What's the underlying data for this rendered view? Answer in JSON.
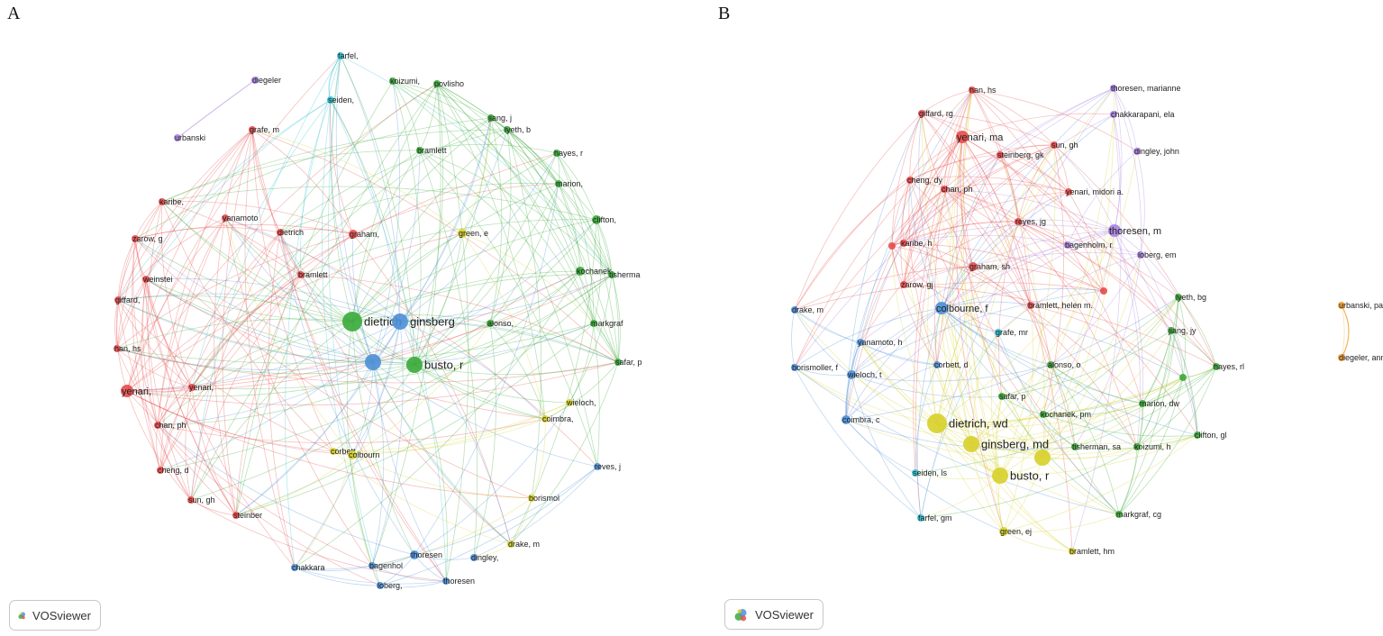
{
  "panels": [
    {
      "letter": "A",
      "logo_text": "VOSviewer",
      "clusters": {
        "red": "#e84a4a",
        "green": "#3aaa3a",
        "blue": "#4d8fd6",
        "yellow": "#d7d02a",
        "purple": "#a77fe0",
        "cyan": "#2fc1d3",
        "orange": "#f09d2c"
      },
      "nodes": [
        {
          "id": "farfel",
          "label": "farfel,",
          "cluster": "cyan",
          "weight": 1
        },
        {
          "id": "diegeler",
          "label": "diegeler",
          "cluster": "purple",
          "weight": 1
        },
        {
          "id": "urbanski",
          "label": "urbanski",
          "cluster": "purple",
          "weight": 1
        },
        {
          "id": "seiden",
          "label": "seiden,",
          "cluster": "cyan",
          "weight": 1
        },
        {
          "id": "koizumi",
          "label": "koizumi,",
          "cluster": "green",
          "weight": 1
        },
        {
          "id": "povlisho",
          "label": "povlisho",
          "cluster": "green",
          "weight": 1
        },
        {
          "id": "jiang",
          "label": "jiang, j",
          "cluster": "green",
          "weight": 1
        },
        {
          "id": "lyeth",
          "label": "lyeth, b",
          "cluster": "green",
          "weight": 1
        },
        {
          "id": "grafe",
          "label": "grafe, m",
          "cluster": "red",
          "weight": 1
        },
        {
          "id": "bramlett_g",
          "label": "bramlett",
          "cluster": "green",
          "weight": 1
        },
        {
          "id": "hayes",
          "label": "hayes, r",
          "cluster": "green",
          "weight": 1
        },
        {
          "id": "marion",
          "label": "marion,",
          "cluster": "green",
          "weight": 1
        },
        {
          "id": "karibe",
          "label": "karibe,",
          "cluster": "red",
          "weight": 1
        },
        {
          "id": "yanamoto",
          "label": "yanamoto",
          "cluster": "red",
          "weight": 1
        },
        {
          "id": "clifton",
          "label": "clifton,",
          "cluster": "green",
          "weight": 2
        },
        {
          "id": "zarow",
          "label": "zarow, g",
          "cluster": "red",
          "weight": 1
        },
        {
          "id": "dietrich_r",
          "label": "dietrich",
          "cluster": "red",
          "weight": 1
        },
        {
          "id": "graham",
          "label": "graham,",
          "cluster": "red",
          "weight": 2
        },
        {
          "id": "green",
          "label": "green, e",
          "cluster": "yellow",
          "weight": 2
        },
        {
          "id": "weinstei",
          "label": "weinstei",
          "cluster": "red",
          "weight": 1
        },
        {
          "id": "bramlett_r",
          "label": "bramlett",
          "cluster": "red",
          "weight": 1
        },
        {
          "id": "kochanek",
          "label": "kochanek",
          "cluster": "green",
          "weight": 2
        },
        {
          "id": "tisherma",
          "label": "tisherma",
          "cluster": "green",
          "weight": 1
        },
        {
          "id": "giffard",
          "label": "giffard,",
          "cluster": "red",
          "weight": 1
        },
        {
          "id": "dietrich",
          "label": "dietrich",
          "cluster": "green",
          "weight": 5
        },
        {
          "id": "ginsberg",
          "label": "ginsberg",
          "cluster": "blue",
          "weight": 4
        },
        {
          "id": "alonso",
          "label": "alonso,",
          "cluster": "green",
          "weight": 1
        },
        {
          "id": "markgraf",
          "label": "markgraf",
          "cluster": "green",
          "weight": 1
        },
        {
          "id": "han",
          "label": "han, hs",
          "cluster": "red",
          "weight": 1
        },
        {
          "id": "busto",
          "label": "busto, r",
          "cluster": "green",
          "weight": 4
        },
        {
          "id": "busto_b",
          "label": "",
          "cluster": "blue",
          "weight": 4
        },
        {
          "id": "safar",
          "label": "safar, p",
          "cluster": "green",
          "weight": 1
        },
        {
          "id": "yenari",
          "label": "yenari,",
          "cluster": "red",
          "weight": 3
        },
        {
          "id": "yenari2",
          "label": "yenari,",
          "cluster": "red",
          "weight": 1
        },
        {
          "id": "wieloch",
          "label": "wieloch,",
          "cluster": "yellow",
          "weight": 1
        },
        {
          "id": "chan",
          "label": "chan, ph",
          "cluster": "red",
          "weight": 1
        },
        {
          "id": "coimbra",
          "label": "coimbra,",
          "cluster": "yellow",
          "weight": 1
        },
        {
          "id": "corbett",
          "label": "corbett,",
          "cluster": "yellow",
          "weight": 1
        },
        {
          "id": "colbourn",
          "label": "colbourn",
          "cluster": "yellow",
          "weight": 2
        },
        {
          "id": "cheng",
          "label": "cheng, d",
          "cluster": "red",
          "weight": 1
        },
        {
          "id": "reves",
          "label": "reves, j",
          "cluster": "blue",
          "weight": 1
        },
        {
          "id": "sun",
          "label": "sun, gh",
          "cluster": "red",
          "weight": 1
        },
        {
          "id": "borismol",
          "label": "borismol",
          "cluster": "yellow",
          "weight": 1
        },
        {
          "id": "steinber",
          "label": "steinber",
          "cluster": "red",
          "weight": 1
        },
        {
          "id": "drake",
          "label": "drake, m",
          "cluster": "yellow",
          "weight": 1
        },
        {
          "id": "thoresen",
          "label": "thoresen",
          "cluster": "blue",
          "weight": 2
        },
        {
          "id": "chakkara",
          "label": "chakkara",
          "cluster": "blue",
          "weight": 1
        },
        {
          "id": "bagenhol",
          "label": "bagenhol",
          "cluster": "blue",
          "weight": 1
        },
        {
          "id": "dingley",
          "label": "dingley,",
          "cluster": "blue",
          "weight": 1
        },
        {
          "id": "loberg",
          "label": "loberg,",
          "cluster": "blue",
          "weight": 1
        },
        {
          "id": "thoresen2",
          "label": "thoresen",
          "cluster": "blue",
          "weight": 1
        }
      ]
    },
    {
      "letter": "B",
      "logo_text": "VOSviewer",
      "nodes": [
        {
          "id": "han",
          "label": "han, hs",
          "cluster": "red",
          "weight": 1
        },
        {
          "id": "thoresen_m2",
          "label": "thoresen, marianne",
          "cluster": "purple",
          "weight": 1
        },
        {
          "id": "giffard",
          "label": "giffard, rg",
          "cluster": "red",
          "weight": 1
        },
        {
          "id": "chakkarapani",
          "label": "chakkarapani, ela",
          "cluster": "purple",
          "weight": 1
        },
        {
          "id": "yenari_ma",
          "label": "yenari, ma",
          "cluster": "red",
          "weight": 3
        },
        {
          "id": "sun",
          "label": "sun, gh",
          "cluster": "red",
          "weight": 1
        },
        {
          "id": "steinberg",
          "label": "steinberg, gk",
          "cluster": "red",
          "weight": 1
        },
        {
          "id": "dingley",
          "label": "dingley, john",
          "cluster": "purple",
          "weight": 1
        },
        {
          "id": "cheng",
          "label": "cheng, dy",
          "cluster": "red",
          "weight": 1
        },
        {
          "id": "chan",
          "label": "chan, ph",
          "cluster": "red",
          "weight": 1
        },
        {
          "id": "yenari_m",
          "label": "yenari, midori a.",
          "cluster": "red",
          "weight": 1
        },
        {
          "id": "reyes",
          "label": "reyes, jg",
          "cluster": "red",
          "weight": 1
        },
        {
          "id": "thoresen_m",
          "label": "thoresen, m",
          "cluster": "purple",
          "weight": 3
        },
        {
          "id": "bagenholm",
          "label": "bagenholm, r",
          "cluster": "purple",
          "weight": 1
        },
        {
          "id": "red_dot1",
          "label": "",
          "cluster": "red",
          "weight": 1
        },
        {
          "id": "karibe",
          "label": "karibe, h",
          "cluster": "red",
          "weight": 1
        },
        {
          "id": "loberg",
          "label": "loberg, em",
          "cluster": "purple",
          "weight": 1
        },
        {
          "id": "graham",
          "label": "graham, sh",
          "cluster": "red",
          "weight": 2
        },
        {
          "id": "zarow",
          "label": "zarow, gj",
          "cluster": "red",
          "weight": 1
        },
        {
          "id": "red_dot2",
          "label": "",
          "cluster": "red",
          "weight": 1
        },
        {
          "id": "lyeth",
          "label": "lyeth, bg",
          "cluster": "green",
          "weight": 1
        },
        {
          "id": "urbanski",
          "label": "urbanski, paul p.",
          "cluster": "orange",
          "weight": 1
        },
        {
          "id": "drake",
          "label": "drake, m",
          "cluster": "blue",
          "weight": 1
        },
        {
          "id": "colbourne",
          "label": "colbourne, f",
          "cluster": "blue",
          "weight": 3
        },
        {
          "id": "bramlett_h",
          "label": "bramlett, helen m.",
          "cluster": "red",
          "weight": 1
        },
        {
          "id": "grafe",
          "label": "grafe, mr",
          "cluster": "cyan",
          "weight": 1
        },
        {
          "id": "jiang",
          "label": "jiang, jy",
          "cluster": "green",
          "weight": 1
        },
        {
          "id": "yanamoto",
          "label": "yanamoto, h",
          "cluster": "blue",
          "weight": 1
        },
        {
          "id": "borismoller",
          "label": "borismoller, f",
          "cluster": "blue",
          "weight": 1
        },
        {
          "id": "wieloch",
          "label": "wieloch, t",
          "cluster": "blue",
          "weight": 2
        },
        {
          "id": "corbett",
          "label": "corbett, d",
          "cluster": "blue",
          "weight": 1
        },
        {
          "id": "alonso",
          "label": "alonso, o",
          "cluster": "green",
          "weight": 1
        },
        {
          "id": "green_dot",
          "label": "",
          "cluster": "green",
          "weight": 1
        },
        {
          "id": "hayes",
          "label": "hayes, rl",
          "cluster": "green",
          "weight": 1
        },
        {
          "id": "diegeler",
          "label": "diegeler, anno",
          "cluster": "orange",
          "weight": 1
        },
        {
          "id": "safar",
          "label": "safar, p",
          "cluster": "green",
          "weight": 1
        },
        {
          "id": "kochanek",
          "label": "kochanek, pm",
          "cluster": "green",
          "weight": 1
        },
        {
          "id": "marion",
          "label": "marion, dw",
          "cluster": "green",
          "weight": 1
        },
        {
          "id": "coimbra",
          "label": "coimbra, c",
          "cluster": "blue",
          "weight": 2
        },
        {
          "id": "dietrich",
          "label": "dietrich, wd",
          "cluster": "yellow",
          "weight": 5
        },
        {
          "id": "clifton",
          "label": "clifton, gl",
          "cluster": "green",
          "weight": 1
        },
        {
          "id": "ginsberg",
          "label": "ginsberg, md",
          "cluster": "yellow",
          "weight": 4
        },
        {
          "id": "yellow_big",
          "label": "",
          "cluster": "yellow",
          "weight": 4
        },
        {
          "id": "tisherman",
          "label": "tisherman, sa",
          "cluster": "green",
          "weight": 1
        },
        {
          "id": "koizumi",
          "label": "koizumi, h",
          "cluster": "green",
          "weight": 1
        },
        {
          "id": "busto",
          "label": "busto, r",
          "cluster": "yellow",
          "weight": 4
        },
        {
          "id": "seiden",
          "label": "seiden, ls",
          "cluster": "cyan",
          "weight": 1
        },
        {
          "id": "markgraf",
          "label": "markgraf, cg",
          "cluster": "green",
          "weight": 1
        },
        {
          "id": "farfel",
          "label": "farfel, gm",
          "cluster": "cyan",
          "weight": 1
        },
        {
          "id": "green_ej",
          "label": "green, ej",
          "cluster": "yellow",
          "weight": 2
        },
        {
          "id": "bramlett_hm",
          "label": "bramlett, hm",
          "cluster": "yellow",
          "weight": 1
        }
      ]
    }
  ]
}
